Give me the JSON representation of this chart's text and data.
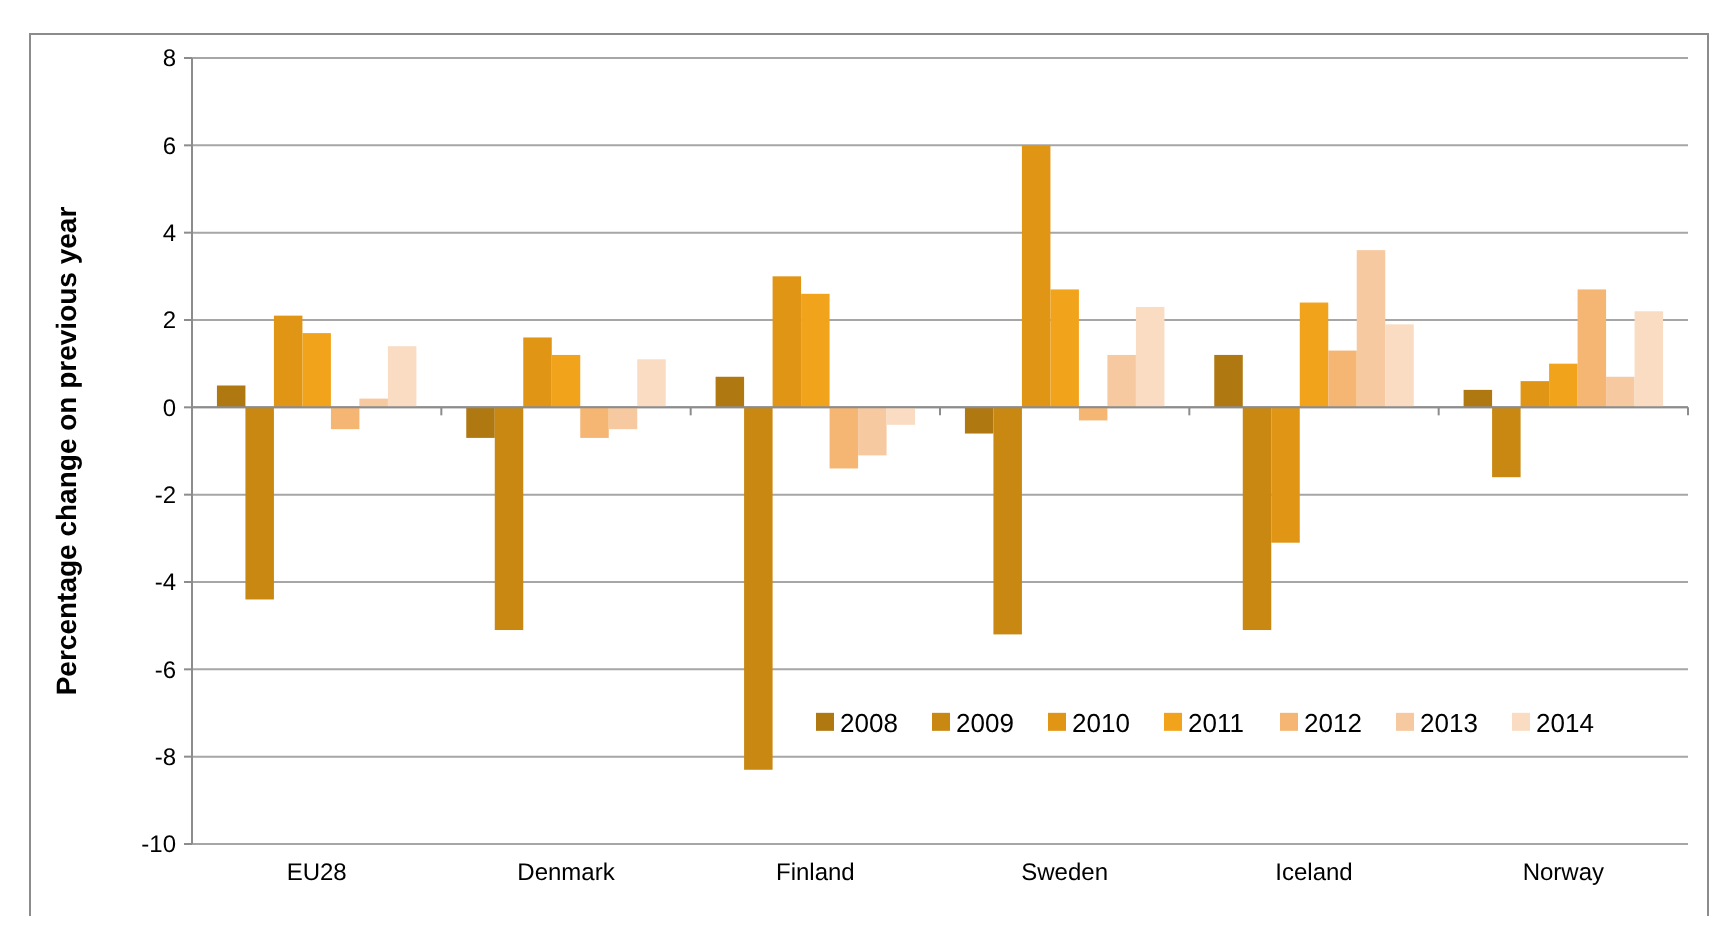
{
  "chart_data": {
    "type": "bar",
    "ylabel": "Percentage change on previous year",
    "categories": [
      "EU28",
      "Denmark",
      "Finland",
      "Sweden",
      "Iceland",
      "Norway"
    ],
    "series": [
      {
        "name": "2008",
        "color": "#b07810",
        "values": [
          0.5,
          -0.7,
          0.7,
          -0.6,
          1.2,
          0.4
        ]
      },
      {
        "name": "2009",
        "color": "#c98812",
        "values": [
          -4.4,
          -5.1,
          -8.3,
          -5.2,
          -5.1,
          -1.6
        ]
      },
      {
        "name": "2010",
        "color": "#e09515",
        "values": [
          2.1,
          1.6,
          3.0,
          6.0,
          -3.1,
          0.6
        ]
      },
      {
        "name": "2011",
        "color": "#f2a31c",
        "values": [
          1.7,
          1.2,
          2.6,
          2.7,
          2.4,
          1.0
        ]
      },
      {
        "name": "2012",
        "color": "#f5b673",
        "values": [
          -0.5,
          -0.7,
          -1.4,
          -0.3,
          1.3,
          2.7
        ]
      },
      {
        "name": "2013",
        "color": "#f7c9a0",
        "values": [
          0.2,
          -0.5,
          -1.1,
          1.2,
          3.6,
          0.7
        ]
      },
      {
        "name": "2014",
        "color": "#f9dcc2",
        "values": [
          1.4,
          1.1,
          -0.4,
          2.3,
          1.9,
          2.2
        ]
      }
    ],
    "ylim": [
      -10,
      8
    ],
    "yticks": [
      -10,
      -8,
      -6,
      -4,
      -2,
      0,
      2,
      4,
      6,
      8
    ],
    "grid": "y",
    "legend": "bottom right"
  }
}
